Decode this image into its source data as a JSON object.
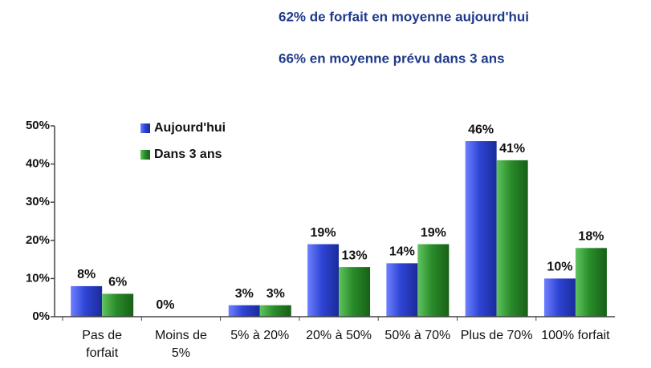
{
  "chart_data": {
    "type": "bar",
    "annotations": [
      "62% de forfait  en moyenne aujourd'hui",
      "66% en moyenne prévu dans 3 ans"
    ],
    "categories": [
      "Pas de forfait",
      "Moins de 5%",
      "5% à 20%",
      "20% à 50%",
      "50% à 70%",
      "Plus de 70%",
      "100% forfait"
    ],
    "series": [
      {
        "name": "Aujourd'hui",
        "color": "#2f45d6",
        "values": [
          8,
          0,
          3,
          19,
          14,
          46,
          10
        ],
        "value_labels": [
          "8%",
          "0%",
          "3%",
          "19%",
          "14%",
          "46%",
          "10%"
        ]
      },
      {
        "name": "Dans 3 ans",
        "color": "#2a8c2a",
        "values": [
          6,
          0,
          3,
          13,
          19,
          41,
          18
        ],
        "value_labels": [
          "6%",
          null,
          "3%",
          "13%",
          "19%",
          "41%",
          "18%"
        ]
      }
    ],
    "ylim": [
      0,
      50
    ],
    "yticks": [
      {
        "value": 0,
        "label": "0%"
      },
      {
        "value": 10,
        "label": "10%"
      },
      {
        "value": 20,
        "label": "20%"
      },
      {
        "value": 30,
        "label": "30%"
      },
      {
        "value": 40,
        "label": "40%"
      },
      {
        "value": 50,
        "label": "50%"
      }
    ],
    "legend": "top-left",
    "grid": false
  }
}
